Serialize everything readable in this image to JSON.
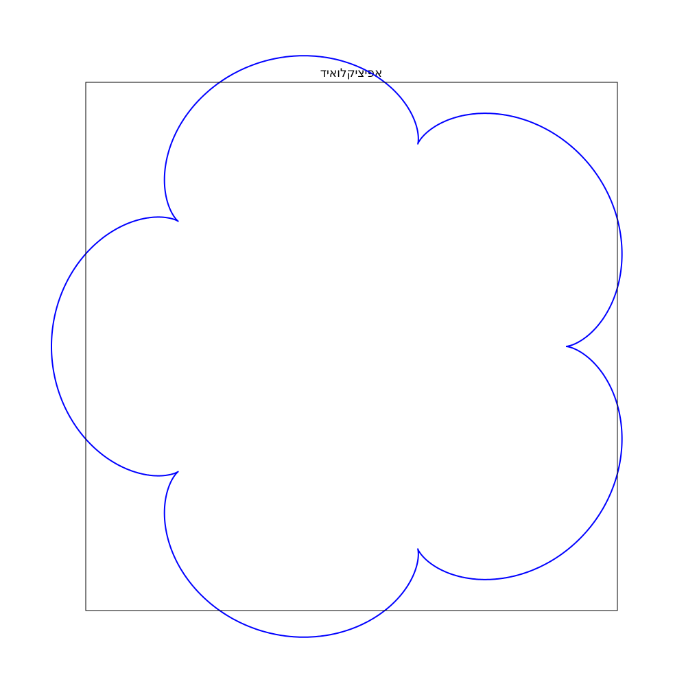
{
  "chart_data": {
    "type": "line",
    "title": "אפיציקלואיד",
    "xlabel": "",
    "ylabel": "",
    "axes_visible": false,
    "grid": false,
    "legend": "none",
    "series": [
      {
        "curve": "epicycloid",
        "fixed_radius": 5,
        "rolling_radius": 1,
        "cusps": 5,
        "t_range": [
          0,
          6.283185
        ],
        "color": "#0000ff"
      }
    ],
    "xlim": [
      -6.2,
      6.2
    ],
    "ylim": [
      -6.2,
      6.2
    ]
  },
  "colors": {
    "curve": "#0000ff",
    "frame": "#000000",
    "background": "#ffffff"
  }
}
